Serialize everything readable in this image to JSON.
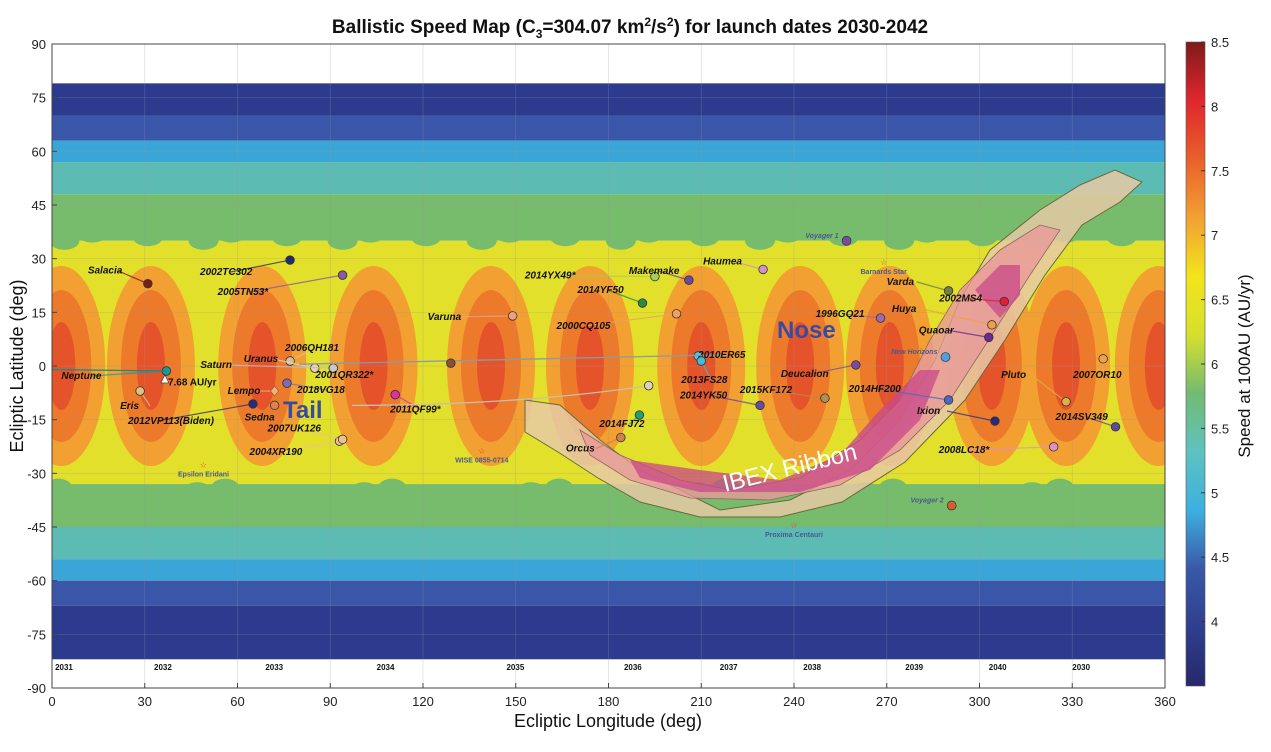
{
  "chart_data": {
    "type": "heatmap",
    "title_parts": {
      "pre": "Ballistic Speed Map (C",
      "sub": "3",
      "mid": "=304.07 km",
      "sup1": "2",
      "mid2": "/s",
      "sup2": "2",
      "post": ") for launch dates 2030-2042"
    },
    "xlabel": "Ecliptic Longitude (deg)",
    "ylabel": "Ecliptic Latitude (deg)",
    "xlim": [
      0,
      360
    ],
    "ylim": [
      -90,
      90
    ],
    "xticks": [
      "0",
      "30",
      "60",
      "90",
      "120",
      "150",
      "180",
      "210",
      "240",
      "270",
      "300",
      "330",
      "360"
    ],
    "yticks": [
      "90",
      "75",
      "60",
      "45",
      "30",
      "15",
      "0",
      "-15",
      "-30",
      "-45",
      "-60",
      "-75",
      "-90"
    ],
    "grid": true,
    "colorbar": {
      "label": "Speed at 100AU (AU/yr)",
      "range": [
        3.5,
        8.5
      ],
      "ticks": [
        "8.5",
        "8",
        "7.5",
        "7",
        "6.5",
        "6",
        "5.5",
        "5",
        "4.5",
        "4"
      ],
      "colors": [
        "#26286a",
        "#2f3f8f",
        "#3a58a8",
        "#3cb0e0",
        "#5ec2c0",
        "#72bb72",
        "#d6e02c",
        "#f3e41c",
        "#f2a032",
        "#e8602a",
        "#e0262e",
        "#7e1a1a"
      ]
    },
    "launch_years": [
      {
        "label": "2031",
        "lon": 1
      },
      {
        "label": "2032",
        "lon": 33
      },
      {
        "label": "2033",
        "lon": 69
      },
      {
        "label": "2034",
        "lon": 105
      },
      {
        "label": "2035",
        "lon": 147
      },
      {
        "label": "2036",
        "lon": 185
      },
      {
        "label": "2037",
        "lon": 216
      },
      {
        "label": "2038",
        "lon": 243
      },
      {
        "label": "2039",
        "lon": 276
      },
      {
        "label": "2040",
        "lon": 303
      },
      {
        "label": "2030",
        "lon": 330
      }
    ],
    "peak_label": "7.68 AU/yr",
    "region_labels": {
      "tail": "Tail",
      "nose": "Nose",
      "ribbon": "IBEX Ribbon"
    },
    "objects": [
      {
        "name": "Salacia",
        "lon": 31,
        "lat": 23,
        "color": "#7a1e14"
      },
      {
        "name": "Neptune",
        "lon": 37,
        "lat": -1.4,
        "color": "#1a9a9a"
      },
      {
        "name": "2002TC302",
        "lon": 77,
        "lat": 29.6,
        "color": "#222a6a"
      },
      {
        "name": "2005TN53*",
        "lon": 94,
        "lat": 25.4,
        "color": "#8a5aa8"
      },
      {
        "name": "Eris",
        "lon": 28.5,
        "lat": -7,
        "color": "#e0c080"
      },
      {
        "name": "2006QH181",
        "lon": 77,
        "lat": 1.4,
        "color": "#d8c0a0"
      },
      {
        "name": "Uranus",
        "lon": 85,
        "lat": -0.6,
        "color": "#e8d0b0"
      },
      {
        "name": "Saturn",
        "lon": 91,
        "lat": -0.6,
        "color": "#b8c0c8"
      },
      {
        "name": "2018VG18",
        "lon": 76,
        "lat": -4.8,
        "color": "#7a6ac0"
      },
      {
        "name": "Lempo",
        "lon": 72,
        "lat": -7,
        "color": "#f0b080",
        "shape": "diamond"
      },
      {
        "name": "Sedna",
        "lon": 72,
        "lat": -11,
        "color": "#e08050"
      },
      {
        "name": "2012VP113(Biden)",
        "lon": 65,
        "lat": -10.6,
        "color": "#2a2a7a"
      },
      {
        "name": "2001QR322*",
        "lon": 91,
        "lat": -0.6,
        "color": "#c8c8c8"
      },
      {
        "name": "2004XR190",
        "lon": 93,
        "lat": -21,
        "color": "#f0c090"
      },
      {
        "name": "2007UK126",
        "lon": 94,
        "lat": -20.5,
        "color": "#f0c090"
      },
      {
        "name": "2011QF99*",
        "lon": 111,
        "lat": -8,
        "color": "#e030a0"
      },
      {
        "name": "Varuna",
        "lon": 149,
        "lat": 14,
        "color": "#f0a080"
      },
      {
        "name": "2014YX49*",
        "lon": 195,
        "lat": 25,
        "color": "#a0d060"
      },
      {
        "name": "Makemake",
        "lon": 206,
        "lat": 24,
        "color": "#6a4aa0"
      },
      {
        "name": "Haumea",
        "lon": 230,
        "lat": 27,
        "color": "#d090d0"
      },
      {
        "name": "2014YF50",
        "lon": 191,
        "lat": 17.6,
        "color": "#2a8a40"
      },
      {
        "name": "2000CQ105",
        "lon": 202,
        "lat": 14.6,
        "color": "#f0a060"
      },
      {
        "name": "2010ER65",
        "lon": 209,
        "lat": 2.8,
        "color": "#50c8e0"
      },
      {
        "name": "2013FS28",
        "lon": 210,
        "lat": 1.4,
        "color": "#40c0d8"
      },
      {
        "name": "2014YK50",
        "lon": 229,
        "lat": -11,
        "color": "#6a4aa0"
      },
      {
        "name": "2014FJ72",
        "lon": 190,
        "lat": -13.7,
        "color": "#20a070"
      },
      {
        "name": "Orcus",
        "lon": 184,
        "lat": -20,
        "color": "#d08050"
      },
      {
        "name": "Deucalion",
        "lon": 260,
        "lat": 0.3,
        "color": "#7a4aa0"
      },
      {
        "name": "2015KF172",
        "lon": 250,
        "lat": -9,
        "color": "#b09050"
      },
      {
        "name": "1996GQ21",
        "lon": 268,
        "lat": 13.4,
        "color": "#9a6ab0"
      },
      {
        "name": "Varda",
        "lon": 290,
        "lat": 21,
        "color": "#708040"
      },
      {
        "name": "Huya",
        "lon": 304,
        "lat": 11.5,
        "color": "#f0a040"
      },
      {
        "name": "2002MS4",
        "lon": 308,
        "lat": 18,
        "color": "#e02030"
      },
      {
        "name": "Quaoar",
        "lon": 303,
        "lat": 8,
        "color": "#6a2a90"
      },
      {
        "name": "2014HF200",
        "lon": 290,
        "lat": -9.5,
        "color": "#4a6ac0"
      },
      {
        "name": "Ixion",
        "lon": 305,
        "lat": -15.4,
        "color": "#2a2a7a"
      },
      {
        "name": "2008LC18*",
        "lon": 324,
        "lat": -22.6,
        "color": "#e090c0"
      },
      {
        "name": "Pluto",
        "lon": 328,
        "lat": -10,
        "color": "#e0b040"
      },
      {
        "name": "2007OR10",
        "lon": 340,
        "lat": 2,
        "color": "#f0a050"
      },
      {
        "name": "2014SV349",
        "lon": 344,
        "lat": -17,
        "color": "#5a4aa0"
      }
    ],
    "spacecraft": [
      {
        "name": "Voyager 1",
        "lon": 257,
        "lat": 35,
        "color": "#7a4aa0"
      },
      {
        "name": "Voyager 2",
        "lon": 291,
        "lat": -39,
        "color": "#d06030"
      },
      {
        "name": "New Horizons",
        "lon": 289,
        "lat": 2.5,
        "color": "#50a0e0"
      }
    ],
    "stars": [
      {
        "name": "Barnards Star",
        "lon": 269,
        "lat": 29
      },
      {
        "name": "Epsilon Eridani",
        "lon": 49,
        "lat": -27.6
      },
      {
        "name": "WISE 0855-0714",
        "lon": 139,
        "lat": -23.6
      },
      {
        "name": "Proxima Centauri",
        "lon": 240,
        "lat": -44.5
      }
    ]
  }
}
